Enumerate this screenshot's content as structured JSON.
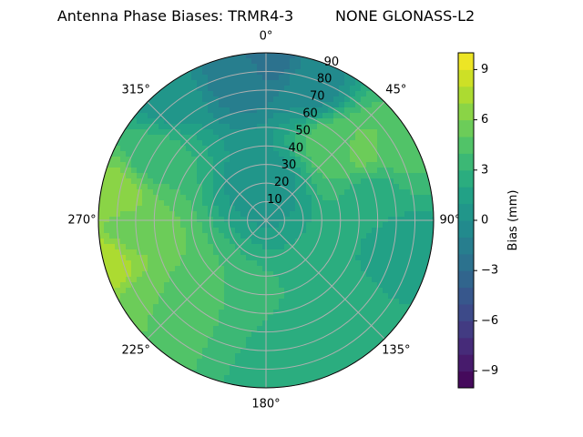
{
  "chart_data": {
    "type": "heatmap",
    "subtype": "polar-contour",
    "title": "Antenna Phase Biases: TRMR4-3         NONE GLONASS-L2",
    "angle_ticks": [
      "0°",
      "45°",
      "90°",
      "135°",
      "180°",
      "225°",
      "270°",
      "315°"
    ],
    "radial_ticks": [
      "10",
      "20",
      "30",
      "40",
      "50",
      "60",
      "70",
      "80",
      "90"
    ],
    "radial_range": [
      0,
      90
    ],
    "grid": true,
    "colorbar": {
      "label": "Bias (mm)",
      "range": [
        -10,
        10
      ],
      "ticks": [
        "−9",
        "−6",
        "−3",
        "0",
        "3",
        "6",
        "9"
      ],
      "tick_values": [
        -9,
        -6,
        -3,
        0,
        3,
        6,
        9
      ],
      "levels": 20,
      "colormap": "viridis"
    },
    "field_samples": [
      {
        "azimuth": 0,
        "zenith": 88,
        "value": -2.5
      },
      {
        "azimuth": 350,
        "zenith": 80,
        "value": -1.5
      },
      {
        "azimuth": 20,
        "zenith": 75,
        "value": -0.5
      },
      {
        "azimuth": 40,
        "zenith": 55,
        "value": 4.5
      },
      {
        "azimuth": 55,
        "zenith": 65,
        "value": 5.5
      },
      {
        "azimuth": 60,
        "zenith": 80,
        "value": 4.5
      },
      {
        "azimuth": 75,
        "zenith": 60,
        "value": 2.5
      },
      {
        "azimuth": 100,
        "zenith": 75,
        "value": 1.5
      },
      {
        "azimuth": 150,
        "zenith": 70,
        "value": 3.0
      },
      {
        "azimuth": 175,
        "zenith": 80,
        "value": 2.5
      },
      {
        "azimuth": 215,
        "zenith": 60,
        "value": 4.0
      },
      {
        "azimuth": 235,
        "zenith": 78,
        "value": 5.0
      },
      {
        "azimuth": 255,
        "zenith": 88,
        "value": 8.0
      },
      {
        "azimuth": 265,
        "zenith": 75,
        "value": 5.5
      },
      {
        "azimuth": 280,
        "zenith": 82,
        "value": 6.5
      },
      {
        "azimuth": 300,
        "zenith": 70,
        "value": 3.5
      },
      {
        "azimuth": 320,
        "zenith": 85,
        "value": 0.5
      },
      {
        "azimuth": 0,
        "zenith": 20,
        "value": 0.5
      }
    ]
  }
}
